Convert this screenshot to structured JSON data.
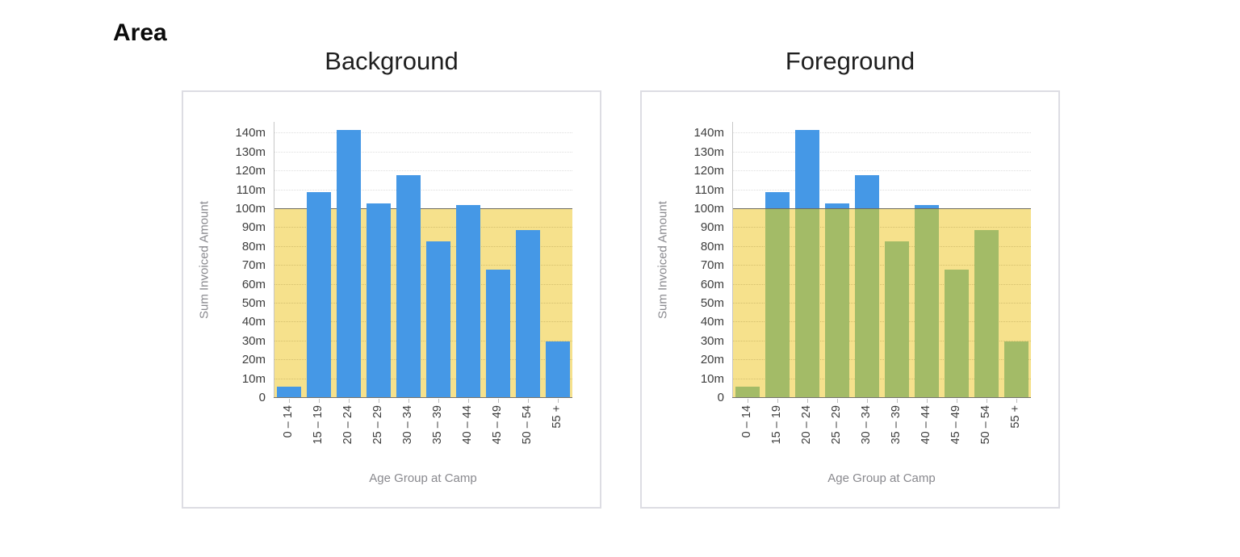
{
  "page": {
    "title": "Area"
  },
  "chart_data": [
    {
      "type": "bar",
      "title": "Background",
      "categories": [
        "0 – 14",
        "15 – 19",
        "20 – 24",
        "25 – 29",
        "30 – 34",
        "35 – 39",
        "40 – 44",
        "45 – 49",
        "50 – 54",
        "55 +"
      ],
      "values": [
        6,
        109,
        142,
        103,
        118,
        83,
        102,
        68,
        89,
        30
      ],
      "xlabel": "Age Group at Camp",
      "ylabel": "Sum Invoiced Amount",
      "ylim": [
        0,
        146
      ],
      "yticks": [
        0,
        10,
        20,
        30,
        40,
        50,
        60,
        70,
        80,
        90,
        100,
        110,
        120,
        130,
        140
      ],
      "ytick_labels": [
        "0",
        "10m",
        "20m",
        "30m",
        "40m",
        "50m",
        "60m",
        "70m",
        "80m",
        "90m",
        "100m",
        "110m",
        "120m",
        "130m",
        "140m"
      ],
      "grid": true,
      "legend": "none",
      "bar_color": "#4598E6",
      "overlay_area": {
        "from": 0,
        "to": 100,
        "color": "#F6E18C",
        "edge_color": "#6F6D60",
        "layer": "background"
      }
    },
    {
      "type": "bar",
      "title": "Foreground",
      "categories": [
        "0 – 14",
        "15 – 19",
        "20 – 24",
        "25 – 29",
        "30 – 34",
        "35 – 39",
        "40 – 44",
        "45 – 49",
        "50 – 54",
        "55 +"
      ],
      "values": [
        6,
        109,
        142,
        103,
        118,
        83,
        102,
        68,
        89,
        30
      ],
      "xlabel": "Age Group at Camp",
      "ylabel": "Sum Invoiced Amount",
      "ylim": [
        0,
        146
      ],
      "yticks": [
        0,
        10,
        20,
        30,
        40,
        50,
        60,
        70,
        80,
        90,
        100,
        110,
        120,
        130,
        140
      ],
      "ytick_labels": [
        "0",
        "10m",
        "20m",
        "30m",
        "40m",
        "50m",
        "60m",
        "70m",
        "80m",
        "90m",
        "100m",
        "110m",
        "120m",
        "130m",
        "140m"
      ],
      "grid": true,
      "legend": "none",
      "bar_color": "#4598E6",
      "bar_color_under_overlay": "#A3BB67",
      "overlay_area": {
        "from": 0,
        "to": 100,
        "color": "#F6E18C",
        "edge_color": "#6F6D60",
        "layer": "foreground"
      }
    }
  ]
}
